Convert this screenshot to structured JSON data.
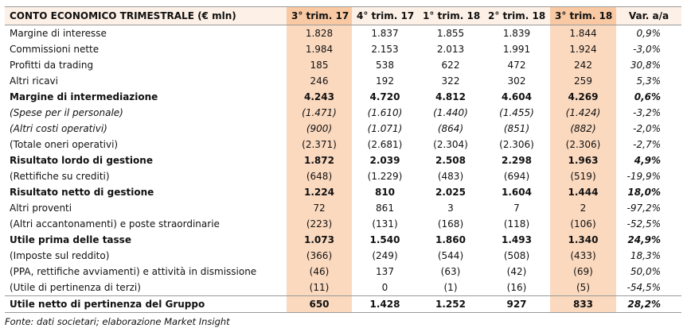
{
  "table": {
    "title": "CONTO ECONOMICO TRIMESTRALE (€ mln)",
    "columns": [
      "3° trim. 17",
      "4° trim. 17",
      "1° trim. 18",
      "2° trim. 18",
      "3° trim. 18",
      "Var. a/a"
    ],
    "rows": [
      {
        "label": "Margine di interesse",
        "values": [
          "1.828",
          "1.837",
          "1.855",
          "1.839",
          "1.844",
          "0,9%"
        ]
      },
      {
        "label": "Commissioni nette",
        "values": [
          "1.984",
          "2.153",
          "2.013",
          "1.991",
          "1.924",
          "-3,0%"
        ]
      },
      {
        "label": "Profitti da trading",
        "values": [
          "185",
          "538",
          "622",
          "472",
          "242",
          "30,8%"
        ]
      },
      {
        "label": "Altri ricavi",
        "values": [
          "246",
          "192",
          "322",
          "302",
          "259",
          "5,3%"
        ]
      },
      {
        "label": "Margine di intermediazione",
        "values": [
          "4.243",
          "4.720",
          "4.812",
          "4.604",
          "4.269",
          "0,6%"
        ],
        "bold": true
      },
      {
        "label": "(Spese per il personale)",
        "values": [
          "(1.471)",
          "(1.610)",
          "(1.440)",
          "(1.455)",
          "(1.424)",
          "-3,2%"
        ],
        "italic": true
      },
      {
        "label": "(Altri costi operativi)",
        "values": [
          "(900)",
          "(1.071)",
          "(864)",
          "(851)",
          "(882)",
          "-2,0%"
        ],
        "italic": true
      },
      {
        "label": "(Totale oneri operativi)",
        "values": [
          "(2.371)",
          "(2.681)",
          "(2.304)",
          "(2.306)",
          "(2.306)",
          "-2,7%"
        ]
      },
      {
        "label": "Risultato lordo di gestione",
        "values": [
          "1.872",
          "2.039",
          "2.508",
          "2.298",
          "1.963",
          "4,9%"
        ],
        "bold": true
      },
      {
        "label": "(Rettifiche su crediti)",
        "values": [
          "(648)",
          "(1.229)",
          "(483)",
          "(694)",
          "(519)",
          "-19,9%"
        ]
      },
      {
        "label": "Risultato netto di gestione",
        "values": [
          "1.224",
          "810",
          "2.025",
          "1.604",
          "1.444",
          "18,0%"
        ],
        "bold": true
      },
      {
        "label": "Altri proventi",
        "values": [
          "72",
          "861",
          "3",
          "7",
          "2",
          "-97,2%"
        ]
      },
      {
        "label": "(Altri accantonamenti) e poste straordinarie",
        "values": [
          "(223)",
          "(131)",
          "(168)",
          "(118)",
          "(106)",
          "-52,5%"
        ]
      },
      {
        "label": "Utile prima delle tasse",
        "values": [
          "1.073",
          "1.540",
          "1.860",
          "1.493",
          "1.340",
          "24,9%"
        ],
        "bold": true
      },
      {
        "label": "(Imposte sul reddito)",
        "values": [
          "(366)",
          "(249)",
          "(544)",
          "(508)",
          "(433)",
          "18,3%"
        ]
      },
      {
        "label": "(PPA, rettifiche avviamenti) e attività in dismissione",
        "values": [
          "(46)",
          "137",
          "(63)",
          "(42)",
          "(69)",
          "50,0%"
        ]
      },
      {
        "label": "(Utile di pertinenza di terzi)",
        "values": [
          "(11)",
          "0",
          "(1)",
          "(16)",
          "(5)",
          "-54,5%"
        ]
      },
      {
        "label": "Utile netto di pertinenza del Gruppo",
        "values": [
          "650",
          "1.428",
          "1.252",
          "927",
          "833",
          "28,2%"
        ],
        "bold": true
      }
    ],
    "source": "Fonte: dati societari; elaborazione Market Insight"
  }
}
